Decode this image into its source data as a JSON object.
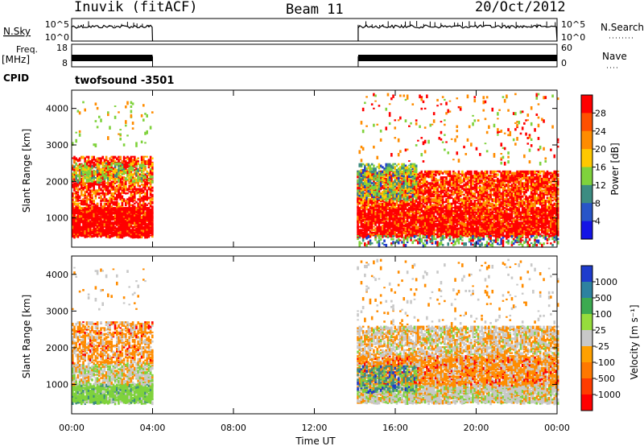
{
  "header": {
    "station": "Inuvik (fitACF)",
    "beam": "Beam 11",
    "date": "20/Oct/2012"
  },
  "strip1": {
    "left_label": "N.Sky",
    "left_ticks": [
      "10^5",
      "10^0"
    ],
    "right_ticks": [
      "10^5",
      "10^0"
    ],
    "right_label": "N.Search"
  },
  "strip2": {
    "left_label_top": "Freq.",
    "left_label_bottom": "[MHz]",
    "left_ticks": [
      "18",
      "8"
    ],
    "right_ticks": [
      "60",
      "0"
    ],
    "right_label": "Nave"
  },
  "cpid": {
    "label": "CPID",
    "value": "twofsound  -3501"
  },
  "colors": {
    "red": "#ff0000",
    "orange": "#ff8c00",
    "yellow": "#ffc800",
    "green": "#7fd23c",
    "teal": "#3c8c82",
    "blue": "#1e3ccd",
    "gray": "#c8c8c8"
  },
  "chart_data": [
    {
      "type": "heatmap",
      "name": "power",
      "ylabel": "Slant Range [km]",
      "yticks": [
        "1000",
        "2000",
        "3000",
        "4000"
      ],
      "ylim": [
        200,
        4500
      ],
      "xlim_hours": [
        0,
        24
      ],
      "colorbar": {
        "label": "Power [dB]",
        "ticks": [
          "4",
          "8",
          "12",
          "16",
          "20",
          "24",
          "28"
        ],
        "colors": [
          "#1414e6",
          "#2855c8",
          "#3c8c82",
          "#7fd23c",
          "#ffc800",
          "#ff8c00",
          "#ff5000",
          "#ff0000"
        ]
      },
      "data_segments": [
        {
          "start": "00:00",
          "end": "04:00"
        },
        {
          "start": "14:10",
          "end": "24:00"
        }
      ]
    },
    {
      "type": "heatmap",
      "name": "velocity",
      "ylabel": "Slant Range [km]",
      "yticks": [
        "1000",
        "2000",
        "3000",
        "4000"
      ],
      "ylim": [
        200,
        4500
      ],
      "xlim_hours": [
        0,
        24
      ],
      "xlabel": "Time UT",
      "xticks": [
        "00:00",
        "04:00",
        "08:00",
        "12:00",
        "16:00",
        "20:00",
        "00:00"
      ],
      "colorbar": {
        "label": "Velocity [m s⁻¹]",
        "ticks": [
          "1000",
          "500",
          "100",
          "25",
          "-25",
          "-100",
          "-500",
          "-1000"
        ],
        "colors": [
          "#1e3ccd",
          "#2d82a0",
          "#3caa50",
          "#96dc3c",
          "#c8c8c8",
          "#ffa000",
          "#ff7800",
          "#ff3c00",
          "#ff0000"
        ]
      },
      "data_segments": [
        {
          "start": "00:00",
          "end": "04:00"
        },
        {
          "start": "14:10",
          "end": "24:00"
        }
      ]
    }
  ]
}
